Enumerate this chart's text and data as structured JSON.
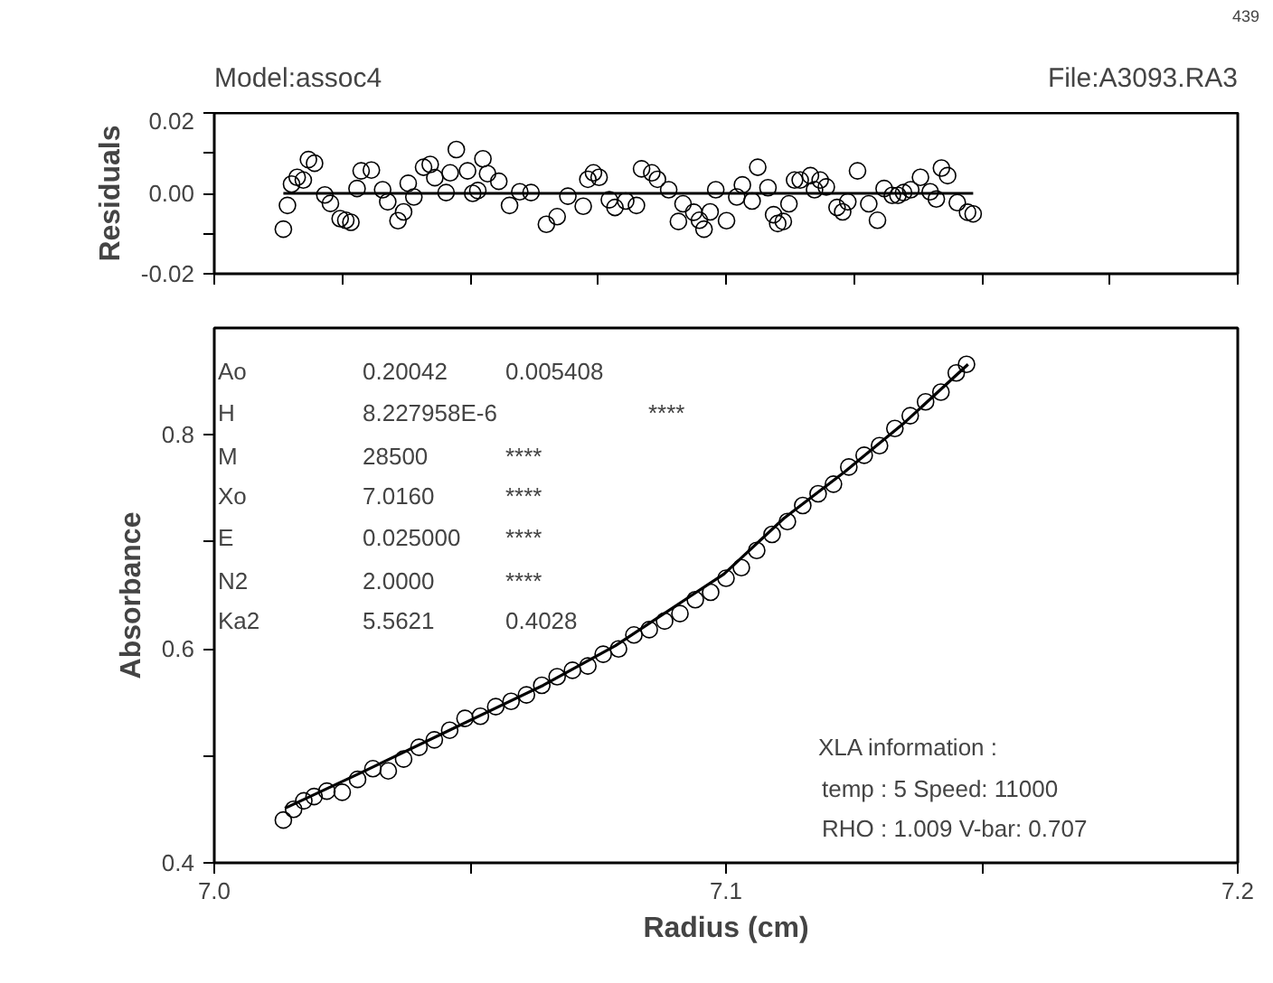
{
  "chart_data": [
    {
      "type": "scatter",
      "title": "Model:assoc4",
      "ylabel": "Residuals",
      "annotations": [
        "File:A3093.RA3",
        "439"
      ],
      "xlim": [
        7.0,
        7.2
      ],
      "xticks": [
        {
          "value": 7.0,
          "label": null
        },
        {
          "value": 7.025,
          "label": null
        },
        {
          "value": 7.05,
          "label": null
        },
        {
          "value": 7.075,
          "label": null
        },
        {
          "value": 7.1,
          "label": null
        },
        {
          "value": 7.125,
          "label": null
        },
        {
          "value": 7.15,
          "label": null
        },
        {
          "value": 7.175,
          "label": null
        },
        {
          "value": 7.2,
          "label": null
        }
      ],
      "ylim": [
        -0.02,
        0.02
      ],
      "yticks": [
        {
          "value": -0.02,
          "label": "-0.02"
        },
        {
          "value": -0.01,
          "label": null
        },
        {
          "value": 0,
          "label": "0.00"
        },
        {
          "value": 0.01,
          "label": null
        },
        {
          "value": 0.02,
          "label": "0.02"
        }
      ],
      "tick_labels": "y",
      "grid": false,
      "series": [
        {
          "marker": "circle",
          "color": "#000000",
          "x": [
            7.0135,
            7.0143,
            7.0151,
            7.0162,
            7.0174,
            7.0184,
            7.0196,
            7.0216,
            7.0227,
            7.0246,
            7.0257,
            7.0267,
            7.0279,
            7.0287,
            7.0307,
            7.0329,
            7.0339,
            7.0359,
            7.037,
            7.0379,
            7.039,
            7.0409,
            7.0422,
            7.0431,
            7.0453,
            7.0461,
            7.0473,
            7.0495,
            7.0505,
            7.0515,
            7.0525,
            7.0534,
            7.0556,
            7.0577,
            7.0597,
            7.0619,
            7.0649,
            7.067,
            7.0691,
            7.0721,
            7.073,
            7.0741,
            7.0752,
            7.0772,
            7.0783,
            7.0804,
            7.0825,
            7.0835,
            7.0855,
            7.0866,
            7.0888,
            7.0907,
            7.0916,
            7.0937,
            7.0948,
            7.0957,
            7.0969,
            7.098,
            7.1001,
            7.1021,
            7.1032,
            7.1051,
            7.1062,
            7.1082,
            7.1093,
            7.1101,
            7.1112,
            7.1123,
            7.1134,
            7.1145,
            7.1165,
            7.1173,
            7.1184,
            7.1196,
            7.1217,
            7.1228,
            7.1238,
            7.1257,
            7.1279,
            7.1296,
            7.1309,
            7.1325,
            7.1336,
            7.1347,
            7.1361,
            7.138,
            7.1399,
            7.1411,
            7.1421,
            7.1433,
            7.1452,
            7.1472,
            7.1483
          ],
          "values": [
            -0.0089,
            -0.003,
            0.0023,
            0.004,
            0.0033,
            0.0084,
            0.0075,
            -0.0004,
            -0.0025,
            -0.0063,
            -0.0067,
            -0.0072,
            0.0012,
            0.0056,
            0.0058,
            0.0009,
            -0.0021,
            -0.0068,
            -0.0046,
            0.0025,
            -0.0009,
            0.0065,
            0.0072,
            0.0039,
            0.0002,
            0.0051,
            0.0109,
            0.0056,
            0.0,
            0.0007,
            0.0086,
            0.0049,
            0.003,
            -0.003,
            0.0004,
            0.0002,
            -0.0077,
            -0.0058,
            -0.0007,
            -0.0032,
            0.0035,
            0.0051,
            0.004,
            -0.0016,
            -0.0035,
            -0.0019,
            -0.003,
            0.0061,
            0.0051,
            0.0035,
            0.0009,
            -0.007,
            -0.0026,
            -0.0047,
            -0.0067,
            -0.0089,
            -0.0046,
            0.0009,
            -0.0068,
            -0.0009,
            0.0021,
            -0.0019,
            0.0065,
            0.0014,
            -0.0053,
            -0.0075,
            -0.007,
            -0.0026,
            0.0033,
            0.0033,
            0.0044,
            0.0009,
            0.0033,
            0.0016,
            -0.0035,
            -0.0046,
            -0.0021,
            0.0056,
            -0.0026,
            -0.0067,
            0.0012,
            -0.0005,
            -0.0005,
            0.0002,
            0.0009,
            0.004,
            0.0004,
            -0.0014,
            0.0063,
            0.0044,
            -0.0023,
            -0.0047,
            -0.0051
          ]
        },
        {
          "type": "line",
          "color": "#000000",
          "x": [
            7.0135,
            7.1483
          ],
          "values": [
            0,
            0
          ]
        }
      ]
    },
    {
      "type": "scatter",
      "xlabel": "Radius (cm)",
      "ylabel": "Absorbance",
      "annotations": [
        "Ao",
        "0.20042",
        "0.005408",
        "H",
        "8.227958E-6",
        "****",
        "M",
        "28500",
        "****",
        "Xo",
        "7.0160",
        "****",
        "E",
        "0.025000",
        "****",
        "N2",
        "2.0000",
        "****",
        "Ka2",
        "5.5621",
        "0.4028",
        "XLA information :",
        "temp : 5  Speed: 11000",
        "RHO  : 1.009   V-bar: 0.707"
      ],
      "xlim": [
        7.0,
        7.2
      ],
      "xticks": [
        {
          "value": 7.0,
          "label": "7.0"
        },
        {
          "value": 7.05,
          "label": null
        },
        {
          "value": 7.1,
          "label": "7.1"
        },
        {
          "value": 7.15,
          "label": null
        },
        {
          "value": 7.2,
          "label": "7.2"
        }
      ],
      "ylim": [
        0.4,
        0.9
      ],
      "yticks": [
        {
          "value": 0.4,
          "label": "0.4"
        },
        {
          "value": 0.5,
          "label": null
        },
        {
          "value": 0.6,
          "label": "0.6"
        },
        {
          "value": 0.7,
          "label": null
        },
        {
          "value": 0.8,
          "label": "0.8"
        }
      ],
      "grid": false,
      "series": [
        {
          "marker": "circle",
          "color": "#000000",
          "x": [
            7.0135,
            7.0155,
            7.0175,
            7.0195,
            7.022,
            7.025,
            7.028,
            7.031,
            7.034,
            7.037,
            7.04,
            7.043,
            7.046,
            7.049,
            7.052,
            7.055,
            7.058,
            7.061,
            7.064,
            7.067,
            7.07,
            7.073,
            7.076,
            7.079,
            7.082,
            7.085,
            7.088,
            7.091,
            7.094,
            7.097,
            7.1,
            7.103,
            7.106,
            7.109,
            7.112,
            7.115,
            7.118,
            7.121,
            7.124,
            7.127,
            7.13,
            7.133,
            7.136,
            7.139,
            7.142,
            7.145,
            7.147
          ],
          "values": [
            0.44,
            0.45,
            0.458,
            0.462,
            0.467,
            0.466,
            0.478,
            0.488,
            0.486,
            0.497,
            0.508,
            0.515,
            0.524,
            0.535,
            0.537,
            0.546,
            0.551,
            0.557,
            0.566,
            0.574,
            0.58,
            0.584,
            0.595,
            0.6,
            0.613,
            0.618,
            0.626,
            0.633,
            0.646,
            0.653,
            0.666,
            0.676,
            0.692,
            0.707,
            0.719,
            0.734,
            0.745,
            0.754,
            0.77,
            0.781,
            0.79,
            0.806,
            0.818,
            0.831,
            0.84,
            0.858,
            0.866
          ]
        },
        {
          "type": "line",
          "color": "#000000",
          "x": [
            7.0138,
            7.029,
            7.0477,
            7.0643,
            7.0784,
            7.0996,
            7.1113,
            7.1233,
            7.135,
            7.1473
          ],
          "values": [
            0.451,
            0.485,
            0.528,
            0.566,
            0.603,
            0.67,
            0.722,
            0.766,
            0.812,
            0.866
          ]
        }
      ]
    }
  ]
}
